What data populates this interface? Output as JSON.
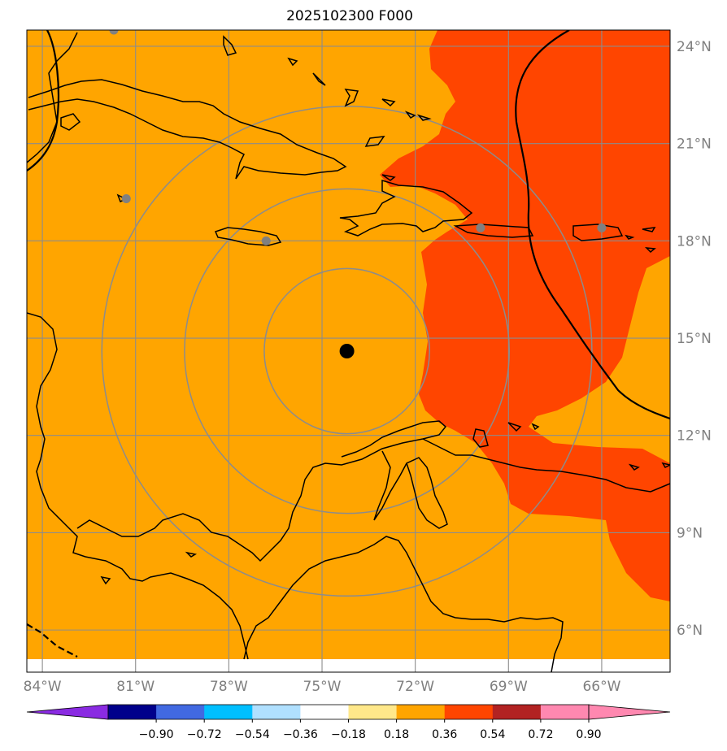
{
  "title": "2025102300 F000",
  "map": {
    "lon_range": [
      -84.5,
      -63.8
    ],
    "lat_range": [
      4.7,
      24.5
    ],
    "lon_ticks": [
      {
        "value": -84,
        "label": "84°W"
      },
      {
        "value": -81,
        "label": "81°W"
      },
      {
        "value": -78,
        "label": "78°W"
      },
      {
        "value": -75,
        "label": "75°W"
      },
      {
        "value": -72,
        "label": "72°W"
      },
      {
        "value": -69,
        "label": "69°W"
      },
      {
        "value": -66,
        "label": "66°W"
      }
    ],
    "lat_ticks": [
      {
        "value": 24,
        "label": "24°N"
      },
      {
        "value": 21,
        "label": "21°N"
      },
      {
        "value": 18,
        "label": "18°N"
      },
      {
        "value": 15,
        "label": "15°N"
      },
      {
        "value": 12,
        "label": "12°N"
      },
      {
        "value": 9,
        "label": "9°N"
      },
      {
        "value": 6,
        "label": "6°N"
      }
    ],
    "grid": true,
    "center_point": {
      "lon": -74.2,
      "lat": 14.6
    },
    "range_rings_deg": [
      2.8,
      5.5,
      8.3
    ],
    "stations": [
      {
        "lon": -81.7,
        "lat": 24.5
      },
      {
        "lon": -81.3,
        "lat": 19.3
      },
      {
        "lon": -76.8,
        "lat": 18.0
      },
      {
        "lon": -69.9,
        "lat": 18.4
      },
      {
        "lon": -66.0,
        "lat": 18.4
      }
    ]
  },
  "colorbar": {
    "colors": [
      "#8a2be2",
      "#00008b",
      "#4169e1",
      "#00bfff",
      "#b0e0ff",
      "#ffffff",
      "#ffe88a",
      "#ffa500",
      "#ff4500",
      "#b22222",
      "#ff88b0",
      "#ff88b0"
    ],
    "tick_labels": [
      "−0.90",
      "−0.72",
      "−0.54",
      "−0.36",
      "−0.18",
      "0.18",
      "0.36",
      "0.54",
      "0.72",
      "0.90"
    ]
  },
  "colors": {
    "field_low": "#ffa500",
    "field_high": "#ff4500",
    "grid": "#8c8c8c",
    "station": "#808080",
    "center": "#000000"
  }
}
